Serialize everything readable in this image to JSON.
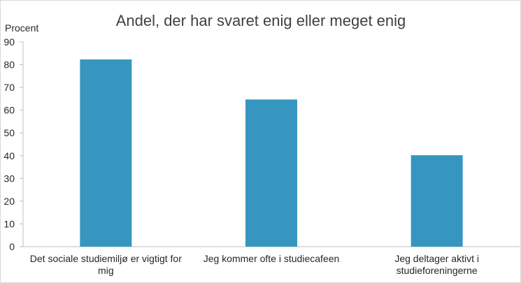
{
  "chart_data": {
    "type": "bar",
    "title": "Andel, der har svaret enig eller meget enig",
    "ylabel": "Procent",
    "xlabel": "",
    "ylim": [
      0,
      90
    ],
    "yticks": [
      0,
      10,
      20,
      30,
      40,
      50,
      60,
      70,
      80,
      90
    ],
    "grid": false,
    "categories": [
      [
        "Det sociale studiemiljø er vigtigt for",
        "mig"
      ],
      [
        "Jeg kommer ofte i studiecafeen"
      ],
      [
        "Jeg deltager aktivt i",
        "studieforeningerne"
      ]
    ],
    "values": [
      82.3,
      64.7,
      40.2
    ],
    "colors": {
      "bar": "#3796bf"
    }
  }
}
